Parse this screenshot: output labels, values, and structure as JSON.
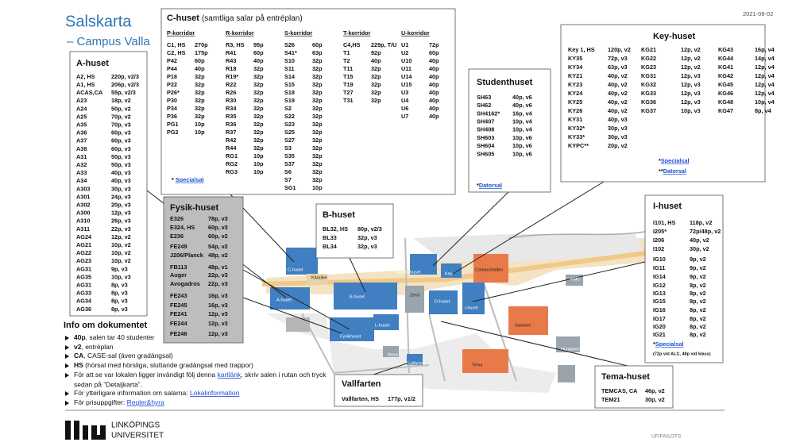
{
  "header": {
    "title": "Salskarta",
    "subtitle": "– Campus Valla",
    "date": "2021-08-02"
  },
  "a_huset": {
    "title": "A-huset",
    "rows": [
      [
        "A2, HS",
        "220p, v2/3"
      ],
      [
        "A1, HS",
        "206p, v2/3"
      ],
      [
        "ACAS,CA",
        "55p, v2/3"
      ],
      [
        "A23",
        "18p, v2"
      ],
      [
        "A24",
        "50p, v2"
      ],
      [
        "A25",
        "70p, v2"
      ],
      [
        "A35",
        "70p, v3"
      ],
      [
        "A36",
        "60p, v3"
      ],
      [
        "A37",
        "60p, v3"
      ],
      [
        "A38",
        "60p, v3"
      ],
      [
        "A31",
        "50p, v3"
      ],
      [
        "A32",
        "50p, v3"
      ],
      [
        "A33",
        "40p, v3"
      ],
      [
        "A34",
        "40p, v3"
      ],
      [
        "A303",
        "30p, v3"
      ],
      [
        "A301",
        "24p, v3"
      ],
      [
        "A302",
        "20p, v3"
      ],
      [
        "A300",
        "12p, v3"
      ],
      [
        "A310",
        "26p, v3"
      ],
      [
        "A311",
        "22p, v3"
      ],
      [
        "AG24",
        "12p, v2"
      ],
      [
        "AG21",
        "10p, v2"
      ],
      [
        "AG22",
        "10p, v2"
      ],
      [
        "AG23",
        "10p, v2"
      ],
      [
        "AG31",
        "9p, v3"
      ],
      [
        "AG35",
        "10p, v3"
      ],
      [
        "AG31",
        "8p, v3"
      ],
      [
        "AG33",
        "8p, v3"
      ],
      [
        "AG34",
        "8p, v3"
      ],
      [
        "AG36",
        "8p, v3"
      ]
    ]
  },
  "c_huset": {
    "title": "C-huset",
    "subtitle": "(samtliga salar på entréplan)",
    "corridors": [
      {
        "header": "P-korridor",
        "rows": [
          [
            "C1, HS",
            "270p"
          ],
          [
            "C2, HS",
            "175p"
          ],
          [
            "P42",
            "60p"
          ],
          [
            "P44",
            "40p"
          ],
          [
            "P18",
            "32p"
          ],
          [
            "P22",
            "32p"
          ],
          [
            "P26*",
            "32p"
          ],
          [
            "P30",
            "32p"
          ],
          [
            "P34",
            "32p"
          ],
          [
            "P36",
            "32p"
          ],
          [
            "PG1",
            "10p"
          ],
          [
            "PG2",
            "10p"
          ]
        ]
      },
      {
        "header": "R-korridor",
        "rows": [
          [
            "R3, HS",
            "95p"
          ],
          [
            "R41",
            "60p"
          ],
          [
            "R43",
            "40p"
          ],
          [
            "R18",
            "32p"
          ],
          [
            "R19*",
            "32p"
          ],
          [
            "R22",
            "32p"
          ],
          [
            "R26",
            "32p"
          ],
          [
            "R30",
            "32p"
          ],
          [
            "R34",
            "32p"
          ],
          [
            "R35",
            "32p"
          ],
          [
            "R36",
            "32p"
          ],
          [
            "R37",
            "32p"
          ],
          [
            "R42",
            "32p"
          ],
          [
            "R44",
            "32p"
          ],
          [
            "RG1",
            "10p"
          ],
          [
            "RG2",
            "10p"
          ],
          [
            "RG3",
            "10p"
          ]
        ]
      },
      {
        "header": "S-korridor",
        "rows": [
          [
            "S26",
            "60p"
          ],
          [
            "S41*",
            "63p"
          ],
          [
            "S10",
            "32p"
          ],
          [
            "S11",
            "32p"
          ],
          [
            "S14",
            "32p"
          ],
          [
            "S15",
            "32p"
          ],
          [
            "S18",
            "32p"
          ],
          [
            "S19",
            "32p"
          ],
          [
            "S2",
            "32p"
          ],
          [
            "S22",
            "32p"
          ],
          [
            "S23",
            "32p"
          ],
          [
            "S25",
            "32p"
          ],
          [
            "S27",
            "32p"
          ],
          [
            "S3",
            "32p"
          ],
          [
            "S35",
            "32p"
          ],
          [
            "S37",
            "32p"
          ],
          [
            "S6",
            "32p"
          ],
          [
            "S7",
            "32p"
          ],
          [
            "SG1",
            "10p"
          ]
        ]
      },
      {
        "header": "T-korridor",
        "rows": [
          [
            "C4,HS",
            "229p, T/U"
          ],
          [
            "T1",
            "92p"
          ],
          [
            "T2",
            "40p"
          ],
          [
            "T11",
            "32p"
          ],
          [
            "T15",
            "32p"
          ],
          [
            "T19",
            "32p"
          ],
          [
            "T27",
            "32p"
          ],
          [
            "T31",
            "32p"
          ]
        ]
      },
      {
        "header": "U-korridor",
        "rows": [
          [
            "U1",
            "72p"
          ],
          [
            "U2",
            "60p"
          ],
          [
            "U10",
            "40p"
          ],
          [
            "U11",
            "40p"
          ],
          [
            "U14",
            "40p"
          ],
          [
            "U15",
            "40p"
          ],
          [
            "U3",
            "40p"
          ],
          [
            "U4",
            "40p"
          ],
          [
            "U6",
            "40p"
          ],
          [
            "U7",
            "40p"
          ]
        ]
      }
    ],
    "note": {
      "mark": "* ",
      "link": "Specialsal"
    }
  },
  "studenthuset": {
    "title": "Studenthuset",
    "rows": [
      [
        "SH63",
        "40p, v6"
      ],
      [
        "SH62",
        "40p, v6"
      ],
      [
        "SH4162*",
        "16p, v4"
      ],
      [
        "SH407",
        "10p, v4"
      ],
      [
        "SH408",
        "10p, v4"
      ],
      [
        "SH603",
        "10p, v6"
      ],
      [
        "SH604",
        "10p, v6"
      ],
      [
        "SH605",
        "10p, v6"
      ]
    ],
    "note": {
      "mark": "*",
      "link": "Datorsal"
    }
  },
  "key_huset": {
    "title": "Key-huset",
    "columns": [
      [
        [
          "Key 1, HS",
          "120p, v2"
        ],
        [
          "KY35",
          "72p, v3"
        ],
        [
          "KY34",
          "63p, v3"
        ],
        [
          "KY21",
          "40p, v2"
        ],
        [
          "KY23",
          "40p, v2"
        ],
        [
          "KY24",
          "40p, v2"
        ],
        [
          "KY25",
          "40p, v2"
        ],
        [
          "KY26",
          "40p, v2"
        ],
        [
          "KY31",
          "40p, v3"
        ],
        [
          "KY32*",
          "30p, v3"
        ],
        [
          "KY33*",
          "30p, v3"
        ],
        [
          "KYPC**",
          "20p, v2"
        ]
      ],
      [
        [
          "KG21",
          "12p, v2"
        ],
        [
          "KG22",
          "12p, v2"
        ],
        [
          "KG23",
          "12p, v2"
        ],
        [
          "KG31",
          "12p, v3"
        ],
        [
          "KG32",
          "12p, v3"
        ],
        [
          "KG33",
          "12p, v3"
        ],
        [
          "KG36",
          "12p, v3"
        ],
        [
          "KG37",
          "10p, v3"
        ]
      ],
      [
        [
          "KG43",
          "16p, v4"
        ],
        [
          "KG44",
          "14p, v4"
        ],
        [
          "KG41",
          "12p, v4"
        ],
        [
          "KG42",
          "12p, v4"
        ],
        [
          "KG45",
          "12p, v4"
        ],
        [
          "KG46",
          "12p, v4"
        ],
        [
          "KG48",
          "10p, v4"
        ],
        [
          "KG47",
          "8p, v4"
        ]
      ]
    ],
    "notes": [
      {
        "mark": "*",
        "link": "Specialsal"
      },
      {
        "mark": "**",
        "link": "Datorsal"
      }
    ]
  },
  "fysik_huset": {
    "title": "Fysik-huset",
    "rows": [
      [
        "E326",
        "78p, v3"
      ],
      [
        "E324, HS",
        "60p, v3"
      ],
      [
        "E236",
        "60p, v2"
      ],
      [
        "FE249",
        "54p, v2"
      ],
      [
        "J206/Planck",
        "48p, v2"
      ],
      [
        "FB113",
        "48p, v1"
      ],
      [
        "Auger",
        "22p, v3"
      ],
      [
        "Avogadros",
        "22p, v3"
      ],
      [
        "FE243",
        "16p, v3"
      ],
      [
        "FE245",
        "16p, v3"
      ],
      [
        "FE241",
        "12p, v3"
      ],
      [
        "FE244",
        "12p, v3"
      ],
      [
        "FE246",
        "12p, v3"
      ]
    ]
  },
  "b_huset": {
    "title": "B-huset",
    "rows": [
      [
        "BL32, HS",
        "80p, v2/3"
      ],
      [
        "BL33",
        "32p, v3"
      ],
      [
        "BL34",
        "32p, v3"
      ]
    ]
  },
  "i_huset": {
    "title": "I-huset",
    "rows": [
      [
        "I101, HS",
        "118p, v2"
      ],
      [
        "I205*",
        "72p/48p, v2"
      ],
      [
        "I206",
        "40p, v2"
      ],
      [
        "I102",
        "30p, v2"
      ],
      [
        "IG10",
        "9p, v2"
      ],
      [
        "IG11",
        "9p, v2"
      ],
      [
        "IG14",
        "9p, v2"
      ],
      [
        "IG12",
        "8p, v2"
      ],
      [
        "IG13",
        "8p, v2"
      ],
      [
        "IG15",
        "8p, v2"
      ],
      [
        "IG16",
        "8p, v2"
      ],
      [
        "IG17",
        "8p, v2"
      ],
      [
        "IG20",
        "8p, v2"
      ],
      [
        "IG21",
        "8p, v2"
      ]
    ],
    "note": {
      "mark": "*",
      "link": "Specialsal"
    },
    "remark": "(72p vid ALC, 48p vid klass)"
  },
  "tema_huset": {
    "title": "Tema-huset",
    "rows": [
      [
        "TEMCAS, CA",
        "46p, v2"
      ],
      [
        "TEM21",
        "30p, v2"
      ]
    ]
  },
  "vallfarten": {
    "title": "Vallfarten",
    "rows": [
      [
        "Vallfarten, HS",
        "177p, v1/2"
      ]
    ]
  },
  "info": {
    "title": "Info om dokumentet",
    "items": [
      {
        "term": "40p",
        "text": ", salen tar 40 studenter"
      },
      {
        "term": "v2",
        "text": ", entréplan"
      },
      {
        "term": "CA",
        "text": ", CASE-sal (även gradängsal)"
      },
      {
        "term": "HS",
        "text": " (hörsal med hörsliga, sluttande gradängsal med trappor)"
      },
      {
        "text": "För att se var lokalen ligger invändigt följ denna ",
        "link": "kartlänk",
        "after": ", skriv salen i rutan och tryck",
        "continuation": "sedan på ”Detaljkarta”."
      },
      {
        "text": "För ytterligare information om salarna: ",
        "link": "Lokalinformation"
      },
      {
        "text": "För prisuppgifter: ",
        "link": "Regler&hyra"
      }
    ]
  },
  "map": {
    "labels": [
      "C-huset",
      "Kårallen",
      "A-huset",
      "B-huset",
      "Zenit",
      "Studenthuset",
      "Key",
      "Campushallen",
      "D-huset",
      "I-huset",
      "KMC",
      "Fysikhuset",
      "L-huset",
      "Galaxen",
      "Nova",
      "Vallfarten",
      "Tema",
      "Hungaren",
      "Kårhuset"
    ]
  },
  "logo": {
    "line1": "LINKÖPINGS",
    "line2": "UNIVERSITET"
  },
  "footer": "UF/FA/LOTS"
}
